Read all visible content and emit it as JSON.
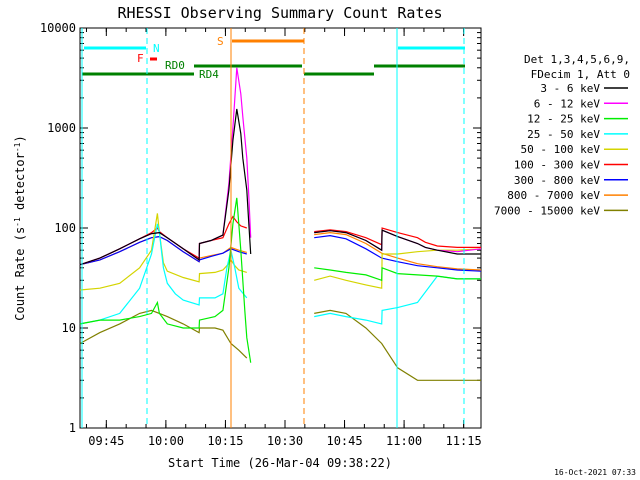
{
  "chart_data": {
    "type": "line",
    "title": "RHESSI Observing Summary Count Rates",
    "xlabel": "Start Time (26-Mar-04 09:38:22)",
    "ylabel_main": "Count Rate (s",
    "ylabel_sup1": "-1",
    "ylabel_mid": " detector",
    "ylabel_sup2": "-1",
    "ylabel_end": ")",
    "y_scale": "log",
    "ylim": [
      1,
      10000
    ],
    "x_unit": "minutes after 09:38:22",
    "xlim": [
      0,
      101
    ],
    "y_ticks": [
      {
        "value": 1,
        "label": "1"
      },
      {
        "value": 10,
        "label": "10"
      },
      {
        "value": 100,
        "label": "100"
      },
      {
        "value": 1000,
        "label": "1000"
      },
      {
        "value": 10000,
        "label": "10000"
      }
    ],
    "x_ticks": [
      {
        "value": 6.63,
        "label": "09:45"
      },
      {
        "value": 21.63,
        "label": "10:00"
      },
      {
        "value": 36.63,
        "label": "10:15"
      },
      {
        "value": 51.63,
        "label": "10:30"
      },
      {
        "value": 66.63,
        "label": "10:45"
      },
      {
        "value": 81.63,
        "label": "11:00"
      },
      {
        "value": 96.63,
        "label": "11:15"
      }
    ],
    "legend_header": [
      "Det 1,3,4,5,6,9,",
      "FDecim 1, Att 0"
    ],
    "legend_position": "right",
    "series": [
      {
        "name": "3 - 6 keV",
        "color": "#000000",
        "points": [
          [
            0,
            43
          ],
          [
            5,
            50
          ],
          [
            10,
            62
          ],
          [
            15,
            78
          ],
          [
            18,
            88
          ],
          [
            20,
            90
          ],
          [
            22,
            80
          ],
          [
            26,
            62
          ],
          [
            30,
            48
          ],
          [
            30.1,
            70
          ],
          [
            33,
            75
          ],
          [
            36,
            85
          ],
          [
            37.5,
            240
          ],
          [
            38.5,
            750
          ],
          [
            39.5,
            1550
          ],
          [
            40.5,
            880
          ],
          [
            41,
            500
          ],
          [
            42,
            240
          ],
          [
            42.5,
            115
          ],
          [
            43,
            55
          ],
          [
            59,
            90
          ],
          [
            63,
            94
          ],
          [
            67,
            90
          ],
          [
            72,
            75
          ],
          [
            76,
            60
          ],
          [
            76.1,
            95
          ],
          [
            80,
            82
          ],
          [
            85,
            70
          ],
          [
            87,
            64
          ],
          [
            90,
            60
          ],
          [
            95,
            55
          ],
          [
            101,
            55
          ]
        ]
      },
      {
        "name": "6 - 12 keV",
        "color": "#ff00ff",
        "points": [
          [
            0,
            43
          ],
          [
            5,
            50
          ],
          [
            10,
            62
          ],
          [
            15,
            78
          ],
          [
            18,
            88
          ],
          [
            20,
            90
          ],
          [
            22,
            80
          ],
          [
            26,
            62
          ],
          [
            30,
            48
          ],
          [
            30.1,
            70
          ],
          [
            33,
            75
          ],
          [
            36,
            85
          ],
          [
            37.5,
            280
          ],
          [
            38.5,
            1000
          ],
          [
            39.5,
            4000
          ],
          [
            40.5,
            2200
          ],
          [
            41,
            1300
          ],
          [
            42,
            500
          ],
          [
            42.5,
            220
          ],
          [
            43,
            80
          ],
          [
            59,
            90
          ],
          [
            63,
            94
          ],
          [
            67,
            90
          ],
          [
            72,
            75
          ],
          [
            76,
            60
          ],
          [
            76.1,
            95
          ],
          [
            80,
            82
          ],
          [
            85,
            70
          ],
          [
            87,
            64
          ],
          [
            90,
            60
          ],
          [
            95,
            58
          ],
          [
            101,
            62
          ]
        ]
      },
      {
        "name": "12 - 25 keV",
        "color": "#00ee00",
        "points": [
          [
            0,
            11
          ],
          [
            5,
            12
          ],
          [
            10,
            12
          ],
          [
            15,
            13
          ],
          [
            18,
            14
          ],
          [
            19.5,
            18
          ],
          [
            20,
            14
          ],
          [
            22,
            11
          ],
          [
            26,
            10
          ],
          [
            30,
            10
          ],
          [
            30.1,
            12
          ],
          [
            34,
            13
          ],
          [
            36,
            15
          ],
          [
            37.5,
            40
          ],
          [
            38.5,
            110
          ],
          [
            39.5,
            200
          ],
          [
            40.5,
            60
          ],
          [
            41.5,
            15
          ],
          [
            42,
            8
          ],
          [
            43,
            4.5
          ],
          [
            59,
            40
          ],
          [
            63,
            38
          ],
          [
            67,
            36
          ],
          [
            72,
            34
          ],
          [
            76,
            30
          ],
          [
            76.1,
            40
          ],
          [
            80,
            35
          ],
          [
            85,
            34
          ],
          [
            90,
            33
          ],
          [
            95,
            31
          ],
          [
            101,
            31
          ]
        ]
      },
      {
        "name": "25 - 50 keV",
        "color": "#00ffff",
        "points": [
          [
            0,
            11
          ],
          [
            5,
            12
          ],
          [
            10,
            14
          ],
          [
            15,
            25
          ],
          [
            18,
            55
          ],
          [
            19.5,
            110
          ],
          [
            20,
            90
          ],
          [
            21,
            40
          ],
          [
            22,
            28
          ],
          [
            24,
            22
          ],
          [
            26,
            19
          ],
          [
            30,
            17
          ],
          [
            30.1,
            20
          ],
          [
            34,
            20
          ],
          [
            36,
            22
          ],
          [
            37,
            40
          ],
          [
            38,
            60
          ],
          [
            39,
            40
          ],
          [
            40,
            25
          ],
          [
            42,
            20
          ],
          [
            59,
            13
          ],
          [
            63,
            14
          ],
          [
            67,
            13
          ],
          [
            72,
            12
          ],
          [
            76,
            11
          ],
          [
            76.1,
            15
          ],
          [
            80,
            16
          ],
          [
            85,
            18
          ],
          [
            90,
            33
          ],
          [
            95,
            31
          ],
          [
            101,
            31
          ]
        ]
      },
      {
        "name": "50 - 100 keV",
        "color": "#d4d400",
        "points": [
          [
            0,
            24
          ],
          [
            5,
            25
          ],
          [
            10,
            28
          ],
          [
            15,
            40
          ],
          [
            18,
            60
          ],
          [
            19.5,
            140
          ],
          [
            20,
            90
          ],
          [
            21,
            45
          ],
          [
            22,
            37
          ],
          [
            26,
            32
          ],
          [
            30,
            29
          ],
          [
            30.1,
            35
          ],
          [
            34,
            36
          ],
          [
            36,
            38
          ],
          [
            37,
            42
          ],
          [
            38,
            48
          ],
          [
            39,
            42
          ],
          [
            40,
            38
          ],
          [
            42,
            36
          ],
          [
            59,
            30
          ],
          [
            63,
            33
          ],
          [
            67,
            30
          ],
          [
            72,
            27
          ],
          [
            76,
            25
          ],
          [
            76.1,
            55
          ],
          [
            80,
            55
          ],
          [
            85,
            58
          ],
          [
            90,
            60
          ],
          [
            95,
            60
          ],
          [
            101,
            62
          ]
        ]
      },
      {
        "name": "100 - 300 keV",
        "color": "#ff0000",
        "points": [
          [
            0,
            43
          ],
          [
            5,
            50
          ],
          [
            10,
            62
          ],
          [
            15,
            78
          ],
          [
            18,
            90
          ],
          [
            19.5,
            100
          ],
          [
            20,
            92
          ],
          [
            22,
            80
          ],
          [
            26,
            62
          ],
          [
            30,
            50
          ],
          [
            30.1,
            70
          ],
          [
            33,
            75
          ],
          [
            36,
            80
          ],
          [
            37.5,
            110
          ],
          [
            38.5,
            130
          ],
          [
            39.5,
            115
          ],
          [
            40.5,
            105
          ],
          [
            42,
            100
          ],
          [
            59,
            92
          ],
          [
            63,
            96
          ],
          [
            67,
            92
          ],
          [
            72,
            80
          ],
          [
            76,
            68
          ],
          [
            76.1,
            100
          ],
          [
            80,
            90
          ],
          [
            85,
            80
          ],
          [
            87,
            72
          ],
          [
            90,
            66
          ],
          [
            95,
            64
          ],
          [
            101,
            64
          ]
        ]
      },
      {
        "name": "300 - 800 keV",
        "color": "#0000ff",
        "points": [
          [
            0,
            43
          ],
          [
            5,
            48
          ],
          [
            10,
            58
          ],
          [
            15,
            72
          ],
          [
            18,
            80
          ],
          [
            20,
            82
          ],
          [
            22,
            75
          ],
          [
            26,
            58
          ],
          [
            30,
            46
          ],
          [
            30.1,
            48
          ],
          [
            33,
            52
          ],
          [
            36,
            56
          ],
          [
            38,
            62
          ],
          [
            40,
            58
          ],
          [
            42,
            55
          ],
          [
            59,
            80
          ],
          [
            63,
            84
          ],
          [
            67,
            78
          ],
          [
            72,
            62
          ],
          [
            76,
            50
          ],
          [
            80,
            46
          ],
          [
            85,
            42
          ],
          [
            90,
            40
          ],
          [
            95,
            38
          ],
          [
            101,
            37
          ]
        ]
      },
      {
        "name": "800 - 7000 keV",
        "color": "#ff8000",
        "points": [
          [
            0,
            43
          ],
          [
            5,
            48
          ],
          [
            10,
            58
          ],
          [
            15,
            72
          ],
          [
            18,
            80
          ],
          [
            20,
            82
          ],
          [
            22,
            75
          ],
          [
            26,
            58
          ],
          [
            30,
            46
          ],
          [
            30.1,
            50
          ],
          [
            33,
            53
          ],
          [
            36,
            56
          ],
          [
            38,
            64
          ],
          [
            40,
            60
          ],
          [
            42,
            57
          ],
          [
            59,
            86
          ],
          [
            63,
            90
          ],
          [
            67,
            86
          ],
          [
            72,
            70
          ],
          [
            76,
            56
          ],
          [
            80,
            50
          ],
          [
            85,
            44
          ],
          [
            90,
            41
          ],
          [
            95,
            39
          ],
          [
            101,
            38
          ]
        ]
      },
      {
        "name": "7000 - 15000 keV",
        "color": "#808000",
        "points": [
          [
            0,
            7
          ],
          [
            5,
            9
          ],
          [
            10,
            11
          ],
          [
            15,
            14
          ],
          [
            18,
            15
          ],
          [
            20,
            14
          ],
          [
            22,
            13
          ],
          [
            26,
            11
          ],
          [
            30,
            9
          ],
          [
            30.1,
            10
          ],
          [
            34,
            10
          ],
          [
            36,
            9.5
          ],
          [
            38,
            7
          ],
          [
            40,
            6
          ],
          [
            42,
            5
          ],
          [
            59,
            14
          ],
          [
            63,
            15
          ],
          [
            67,
            14
          ],
          [
            72,
            10
          ],
          [
            76,
            7
          ],
          [
            80,
            4
          ],
          [
            85,
            3
          ],
          [
            90,
            3
          ],
          [
            95,
            3
          ],
          [
            101,
            3
          ]
        ]
      }
    ],
    "annotations": [
      {
        "text": "N",
        "color": "#00ffff"
      },
      {
        "text": "F",
        "color": "#ff0000"
      },
      {
        "text": "RD0",
        "color": "#008000"
      },
      {
        "text": "RD4",
        "color": "#008000"
      },
      {
        "text": "S",
        "color": "#ff8000"
      }
    ],
    "timestamp": "16-Oct-2021 07:33"
  }
}
